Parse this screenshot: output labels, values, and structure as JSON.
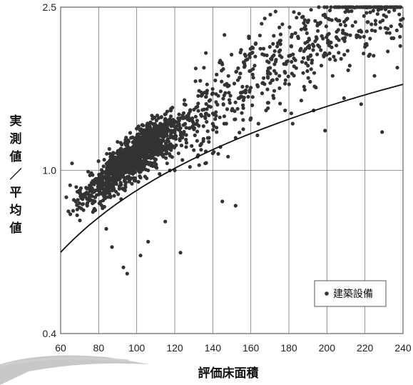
{
  "chart_data": {
    "type": "scatter",
    "title": "",
    "xlabel": "評価床面積",
    "ylabel": "実測値／平均値",
    "xlim": [
      60,
      240
    ],
    "ylim": [
      0.4,
      2.5
    ],
    "y_scale": "log",
    "x_ticks": [
      "60",
      "80",
      "100",
      "120",
      "140",
      "160",
      "180",
      "200",
      "220",
      "240"
    ],
    "y_ticks": [
      "0.4",
      "1.0",
      "2.5"
    ],
    "grid": "vertical lines every 20; horizontal line at 1.0",
    "legend": {
      "position": "bottom-right",
      "entries": [
        "建築設備"
      ]
    },
    "series": [
      {
        "name": "建築設備",
        "marker": "dot",
        "color": "#333333",
        "trend": "center of cloud",
        "points_description": "dense cloud centered near x=100-140, y~1.0; sparse scatter up to x=240"
      }
    ],
    "sample_points": [
      [
        63,
        0.86
      ],
      [
        65,
        0.92
      ],
      [
        66,
        1.04
      ],
      [
        68,
        0.84
      ],
      [
        70,
        0.88
      ],
      [
        72,
        0.8
      ],
      [
        74,
        0.82
      ],
      [
        75,
        0.86
      ],
      [
        78,
        0.84
      ],
      [
        80,
        0.9
      ],
      [
        82,
        0.94
      ],
      [
        84,
        0.88
      ],
      [
        86,
        0.96
      ],
      [
        88,
        0.9
      ],
      [
        90,
        0.98
      ],
      [
        92,
        1.0
      ],
      [
        94,
        0.92
      ],
      [
        96,
        1.02
      ],
      [
        98,
        0.98
      ],
      [
        100,
        1.04
      ],
      [
        102,
        0.96
      ],
      [
        104,
        1.06
      ],
      [
        106,
        1.0
      ],
      [
        108,
        1.1
      ],
      [
        110,
        1.02
      ],
      [
        112,
        0.98
      ],
      [
        114,
        1.08
      ],
      [
        116,
        1.04
      ],
      [
        118,
        1.12
      ],
      [
        120,
        1.0
      ],
      [
        122,
        1.1
      ],
      [
        124,
        1.06
      ],
      [
        126,
        1.14
      ],
      [
        128,
        1.02
      ],
      [
        130,
        1.12
      ],
      [
        132,
        1.08
      ],
      [
        134,
        1.16
      ],
      [
        136,
        1.04
      ],
      [
        138,
        1.2
      ],
      [
        140,
        1.1
      ],
      [
        142,
        1.24
      ],
      [
        144,
        1.14
      ],
      [
        146,
        1.3
      ],
      [
        148,
        1.08
      ],
      [
        150,
        1.4
      ],
      [
        152,
        1.2
      ],
      [
        154,
        1.5
      ],
      [
        156,
        1.26
      ],
      [
        158,
        1.6
      ],
      [
        160,
        1.34
      ],
      [
        162,
        1.8
      ],
      [
        164,
        1.3
      ],
      [
        166,
        1.92
      ],
      [
        168,
        1.4
      ],
      [
        170,
        2.0
      ],
      [
        172,
        1.5
      ],
      [
        173,
        2.44
      ],
      [
        175,
        1.7
      ],
      [
        178,
        1.4
      ],
      [
        180,
        1.9
      ],
      [
        182,
        1.3
      ],
      [
        185,
        2.1
      ],
      [
        188,
        1.6
      ],
      [
        190,
        1.8
      ],
      [
        193,
        1.4
      ],
      [
        196,
        2.0
      ],
      [
        199,
        1.25
      ],
      [
        200,
        2.5
      ],
      [
        203,
        1.7
      ],
      [
        206,
        2.2
      ],
      [
        209,
        1.5
      ],
      [
        212,
        1.8
      ],
      [
        215,
        2.3
      ],
      [
        218,
        1.45
      ],
      [
        220,
        2.0
      ],
      [
        222,
        1.9
      ],
      [
        225,
        1.7
      ],
      [
        228,
        2.3
      ],
      [
        229,
        1.24
      ],
      [
        232,
        1.95
      ],
      [
        235,
        2.1
      ],
      [
        237,
        1.78
      ],
      [
        238,
        2.4
      ],
      [
        93,
        0.58
      ],
      [
        95,
        0.56
      ],
      [
        87,
        0.65
      ],
      [
        102,
        0.62
      ],
      [
        123,
        0.63
      ],
      [
        106,
        0.67
      ],
      [
        115,
        0.75
      ],
      [
        145,
        0.84
      ],
      [
        152,
        0.82
      ],
      [
        84,
        0.72
      ],
      [
        97,
        1.2
      ],
      [
        101,
        1.28
      ],
      [
        108,
        1.36
      ],
      [
        113,
        1.35
      ],
      [
        118,
        1.4
      ],
      [
        125,
        1.45
      ],
      [
        134,
        1.52
      ]
    ]
  },
  "legend_label": "建築設備",
  "axis": {
    "xlabel": "評価床面積",
    "ylabel_chars": [
      "実",
      "測",
      "値",
      "／",
      "平",
      "均",
      "値"
    ]
  }
}
